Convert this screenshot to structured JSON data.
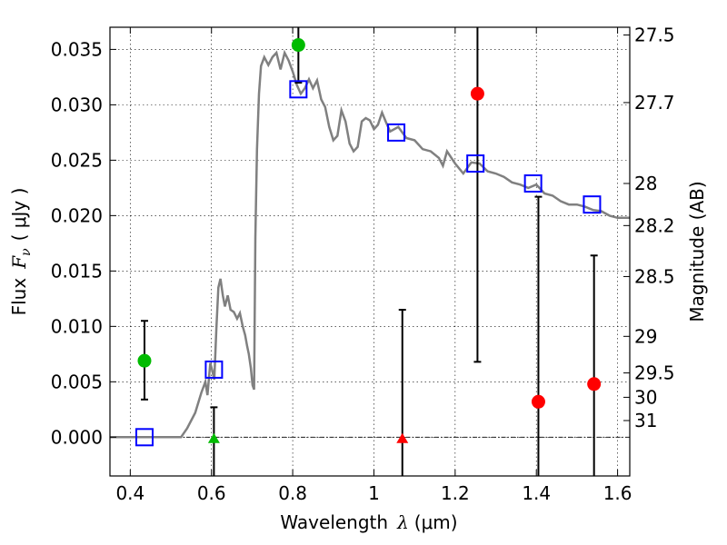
{
  "chart_data": {
    "type": "scatter",
    "xlabel": "Wavelength",
    "xlabel_math": "λ",
    "xlabel_unit": "(μm)",
    "ylabel": "Flux",
    "ylabel_math": "F",
    "ylabel_math_sub": "ν",
    "ylabel_unit": "( μJy )",
    "y2label": "Magnitude (AB)",
    "xlim": [
      0.35,
      1.63
    ],
    "ylim": [
      -0.0035,
      0.037
    ],
    "grid": true,
    "x_ticks": [
      0.4,
      0.6,
      0.8,
      1.0,
      1.2,
      1.4,
      1.6
    ],
    "x_tick_labels": [
      "0.4",
      "0.6",
      "0.8",
      "1",
      "1.2",
      "1.4",
      "1.6"
    ],
    "y_ticks": [
      0.0,
      0.005,
      0.01,
      0.015,
      0.02,
      0.025,
      0.03,
      0.035
    ],
    "y_tick_labels": [
      "0.000",
      "0.005",
      "0.010",
      "0.015",
      "0.020",
      "0.025",
      "0.030",
      "0.035"
    ],
    "mag_ticks": [
      {
        "label": "27.5",
        "flux": 0.0363
      },
      {
        "label": "27.7",
        "flux": 0.0302
      },
      {
        "label": "28",
        "flux": 0.0229
      },
      {
        "label": "28.2",
        "flux": 0.0191
      },
      {
        "label": "28.5",
        "flux": 0.0145
      },
      {
        "label": "29",
        "flux": 0.0091
      },
      {
        "label": "29.5",
        "flux": 0.0058
      },
      {
        "label": "30",
        "flux": 0.0036
      },
      {
        "label": "31",
        "flux": 0.0015
      }
    ],
    "colors": {
      "template": "#808080",
      "model": "#0000ff",
      "detection": "#00bb00",
      "low_sn": "#ff0000",
      "errorbar": "#000000",
      "zero_line": "#000000"
    },
    "template_sed": [
      [
        0.35,
        0.0
      ],
      [
        0.525,
        0.0
      ],
      [
        0.54,
        0.0008
      ],
      [
        0.56,
        0.0022
      ],
      [
        0.575,
        0.004
      ],
      [
        0.585,
        0.005
      ],
      [
        0.59,
        0.0038
      ],
      [
        0.597,
        0.0067
      ],
      [
        0.602,
        0.006
      ],
      [
        0.607,
        0.0052
      ],
      [
        0.612,
        0.0098
      ],
      [
        0.617,
        0.0135
      ],
      [
        0.622,
        0.0143
      ],
      [
        0.628,
        0.0128
      ],
      [
        0.633,
        0.0118
      ],
      [
        0.64,
        0.0128
      ],
      [
        0.647,
        0.0115
      ],
      [
        0.655,
        0.0113
      ],
      [
        0.663,
        0.0107
      ],
      [
        0.67,
        0.0112
      ],
      [
        0.677,
        0.01
      ],
      [
        0.683,
        0.0092
      ],
      [
        0.688,
        0.0082
      ],
      [
        0.692,
        0.0075
      ],
      [
        0.697,
        0.0062
      ],
      [
        0.701,
        0.0047
      ],
      [
        0.705,
        0.0043
      ],
      [
        0.708,
        0.018
      ],
      [
        0.712,
        0.026
      ],
      [
        0.717,
        0.031
      ],
      [
        0.722,
        0.0335
      ],
      [
        0.73,
        0.0343
      ],
      [
        0.74,
        0.0336
      ],
      [
        0.75,
        0.0343
      ],
      [
        0.76,
        0.0347
      ],
      [
        0.77,
        0.0332
      ],
      [
        0.78,
        0.0347
      ],
      [
        0.79,
        0.034
      ],
      [
        0.8,
        0.033
      ],
      [
        0.81,
        0.0318
      ],
      [
        0.82,
        0.031
      ],
      [
        0.83,
        0.0315
      ],
      [
        0.84,
        0.0323
      ],
      [
        0.85,
        0.0315
      ],
      [
        0.86,
        0.0322
      ],
      [
        0.87,
        0.0305
      ],
      [
        0.88,
        0.0298
      ],
      [
        0.89,
        0.028
      ],
      [
        0.9,
        0.0268
      ],
      [
        0.91,
        0.0272
      ],
      [
        0.92,
        0.0295
      ],
      [
        0.93,
        0.0285
      ],
      [
        0.94,
        0.0265
      ],
      [
        0.95,
        0.0258
      ],
      [
        0.96,
        0.0262
      ],
      [
        0.97,
        0.0285
      ],
      [
        0.98,
        0.0288
      ],
      [
        0.99,
        0.0286
      ],
      [
        1.0,
        0.0278
      ],
      [
        1.01,
        0.0282
      ],
      [
        1.02,
        0.0293
      ],
      [
        1.03,
        0.0284
      ],
      [
        1.04,
        0.0276
      ],
      [
        1.06,
        0.028
      ],
      [
        1.08,
        0.027
      ],
      [
        1.1,
        0.0268
      ],
      [
        1.12,
        0.026
      ],
      [
        1.14,
        0.0258
      ],
      [
        1.16,
        0.0252
      ],
      [
        1.17,
        0.0245
      ],
      [
        1.18,
        0.0258
      ],
      [
        1.2,
        0.0247
      ],
      [
        1.22,
        0.0238
      ],
      [
        1.24,
        0.0248
      ],
      [
        1.26,
        0.0247
      ],
      [
        1.28,
        0.024
      ],
      [
        1.3,
        0.0238
      ],
      [
        1.32,
        0.0235
      ],
      [
        1.34,
        0.023
      ],
      [
        1.36,
        0.0228
      ],
      [
        1.38,
        0.0225
      ],
      [
        1.4,
        0.0228
      ],
      [
        1.42,
        0.022
      ],
      [
        1.44,
        0.0218
      ],
      [
        1.46,
        0.0213
      ],
      [
        1.48,
        0.021
      ],
      [
        1.5,
        0.021
      ],
      [
        1.52,
        0.0208
      ],
      [
        1.54,
        0.0205
      ],
      [
        1.56,
        0.0204
      ],
      [
        1.58,
        0.02
      ],
      [
        1.6,
        0.0198
      ],
      [
        1.63,
        0.0198
      ]
    ],
    "model_fluxes": [
      {
        "x": 0.435,
        "y": 0.0
      },
      {
        "x": 0.606,
        "y": 0.0061
      },
      {
        "x": 0.814,
        "y": 0.0314
      },
      {
        "x": 1.055,
        "y": 0.0275
      },
      {
        "x": 1.25,
        "y": 0.0247
      },
      {
        "x": 1.392,
        "y": 0.0229
      },
      {
        "x": 1.537,
        "y": 0.021
      }
    ],
    "observations": [
      {
        "x": 0.435,
        "y": 0.0069,
        "err_lo": 0.0034,
        "err_hi": 0.0105,
        "marker": "circle",
        "color": "detection"
      },
      {
        "x": 0.606,
        "y": -0.0002,
        "err_lo": -0.0035,
        "err_hi": 0.0027,
        "marker": "triangle",
        "color": "detection"
      },
      {
        "x": 0.814,
        "y": 0.0354,
        "err_lo": 0.032,
        "err_hi": 0.0375,
        "marker": "circle",
        "color": "detection"
      },
      {
        "x": 1.07,
        "y": -0.0002,
        "err_lo": -0.0035,
        "err_hi": 0.0115,
        "marker": "triangle",
        "color": "low_sn"
      },
      {
        "x": 1.255,
        "y": 0.031,
        "err_lo": 0.0068,
        "err_hi": 0.0375,
        "marker": "circle",
        "color": "low_sn"
      },
      {
        "x": 1.405,
        "y": 0.0032,
        "err_lo": -0.0035,
        "err_hi": 0.0217,
        "marker": "circle",
        "color": "low_sn"
      },
      {
        "x": 1.542,
        "y": 0.0048,
        "err_lo": -0.0035,
        "err_hi": 0.0164,
        "marker": "circle",
        "color": "low_sn"
      }
    ]
  }
}
